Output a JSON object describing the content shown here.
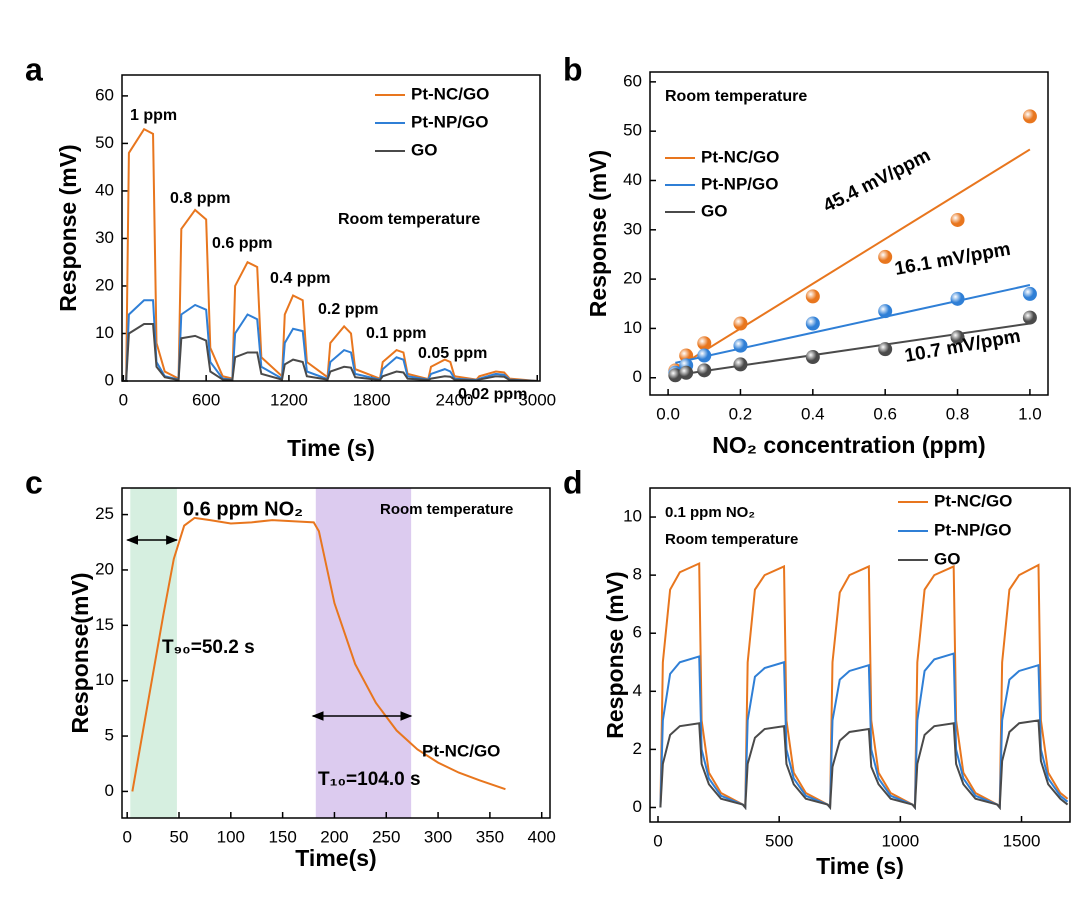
{
  "chart_data": [
    {
      "type": "line",
      "panel_label": "a",
      "y_label": "Response (mV)",
      "x_label": "Time (s)",
      "xlim": [
        -10,
        3020
      ],
      "ylim": [
        0,
        64.4
      ],
      "xticks": [
        0,
        600,
        1200,
        1800,
        2400,
        3000
      ],
      "yticks": [
        0,
        10,
        20,
        30,
        40,
        50,
        60
      ],
      "legend": true,
      "annotations": [
        "1 ppm",
        "0.8 ppm",
        "0.6 ppm",
        "0.4 ppm",
        "0.2 ppm",
        "0.1 ppm",
        "0.05 ppm",
        "0.02 ppm",
        "Room temperature"
      ],
      "x": [
        0,
        20,
        40,
        150,
        215,
        240,
        300,
        400,
        420,
        520,
        600,
        630,
        720,
        790,
        810,
        900,
        970,
        1000,
        1150,
        1170,
        1230,
        1300,
        1330,
        1480,
        1500,
        1600,
        1650,
        1680,
        1860,
        1880,
        1980,
        2030,
        2060,
        2210,
        2230,
        2330,
        2370,
        2400,
        2560,
        2580,
        2700,
        2760,
        2800,
        3000
      ],
      "series": [
        {
          "name": "Pt-NC/GO",
          "color": "#e8761e",
          "values": [
            0,
            0,
            48,
            53,
            52,
            8,
            2,
            0.5,
            32,
            36,
            34,
            7,
            1,
            0.5,
            20,
            25,
            24,
            5,
            1,
            14,
            18,
            17,
            4,
            0.8,
            8,
            11.5,
            10,
            2.5,
            0.5,
            4,
            6.5,
            6,
            1.5,
            0.4,
            3,
            4.5,
            4,
            1,
            0.3,
            1,
            2,
            1.8,
            0.5,
            0
          ]
        },
        {
          "name": "Pt-NP/GO",
          "color": "#2f7fd6",
          "values": [
            0,
            0,
            14,
            17,
            17,
            4,
            1,
            0.3,
            14,
            16,
            15,
            4,
            0.5,
            0.3,
            10,
            14,
            13,
            3,
            0.5,
            8,
            11,
            10.5,
            2,
            0.4,
            4,
            6.5,
            6,
            1.5,
            0.3,
            2.5,
            5,
            4.5,
            1,
            0.3,
            1.5,
            2.5,
            2,
            0.5,
            0.2,
            0.5,
            1.5,
            1.3,
            0.3,
            0
          ]
        },
        {
          "name": "GO",
          "color": "#4a4a4a",
          "values": [
            0,
            0,
            10,
            12,
            12,
            3,
            0.8,
            0.2,
            9,
            9.5,
            8.5,
            2,
            0.3,
            0.2,
            5,
            6,
            6,
            1.5,
            0.3,
            3.5,
            4.5,
            4,
            1,
            0.3,
            2,
            3,
            2.8,
            0.8,
            0.2,
            1,
            2,
            1.8,
            0.5,
            0.2,
            0.5,
            1,
            0.9,
            0.3,
            0.1,
            0.3,
            1,
            0.9,
            0.2,
            0
          ]
        }
      ]
    },
    {
      "type": "scatter",
      "panel_label": "b",
      "y_label": "Response (mV)",
      "x_label": "NO₂ concentration (ppm)",
      "xlim": [
        -0.05,
        1.05
      ],
      "ylim": [
        -3.5,
        62
      ],
      "xticks": [
        {
          "value": 0,
          "label": "0.0"
        },
        0.2,
        0.4,
        0.6,
        0.8,
        {
          "value": 1,
          "label": "1.0"
        }
      ],
      "yticks": [
        0,
        10,
        20,
        30,
        40,
        50,
        60
      ],
      "legend": true,
      "annotations": [
        "Room temperature"
      ],
      "fit_x": [
        0.02,
        1.0
      ],
      "x": [
        0.02,
        0.05,
        0.1,
        0.2,
        0.4,
        0.6,
        0.8,
        1.0
      ],
      "series": [
        {
          "name": "Pt-NC/GO",
          "color": "#e8761e",
          "values": [
            1.5,
            4.5,
            7,
            11,
            16.5,
            24.5,
            32,
            53
          ],
          "fit": {
            "slope": 45.4,
            "intercept": 0.9,
            "label": "45.4 mV/ppm"
          }
        },
        {
          "name": "Pt-NP/GO",
          "color": "#2f7fd6",
          "values": [
            1,
            2.5,
            4.5,
            6.5,
            11,
            13.5,
            16,
            17
          ],
          "fit": {
            "slope": 16.1,
            "intercept": 2.7,
            "label": "16.1 mV/ppm"
          }
        },
        {
          "name": "GO",
          "color": "#4a4a4a",
          "values": [
            0.5,
            1,
            1.5,
            2.7,
            4.2,
            5.8,
            8.2,
            12.2
          ],
          "fit": {
            "slope": 10.7,
            "intercept": 0.3,
            "label": "10.7 mV/ppm"
          }
        }
      ]
    },
    {
      "type": "line",
      "panel_label": "c",
      "y_label": "Response(mV)",
      "x_label": "Time(s)",
      "xlim": [
        -5,
        408
      ],
      "ylim": [
        -2.4,
        27.4
      ],
      "xticks": [
        0,
        50,
        100,
        150,
        200,
        250,
        300,
        350,
        400
      ],
      "yticks": [
        0,
        5,
        10,
        15,
        20,
        25
      ],
      "legend": false,
      "annotations": [
        "0.6 ppm NO₂",
        "Room temperature",
        "T₉₀=50.2 s",
        "T₁₀=104.0 s"
      ],
      "shaded_regions": [
        {
          "xlim": [
            3,
            48
          ],
          "color": "#d6efe0"
        },
        {
          "xlim": [
            182,
            274
          ],
          "color": "#dccbef"
        }
      ],
      "x": [
        5,
        20,
        35,
        45,
        55,
        65,
        80,
        100,
        120,
        140,
        160,
        180,
        185,
        200,
        220,
        240,
        260,
        280,
        300,
        320,
        340,
        365
      ],
      "series": [
        {
          "name": "Pt-NC/GO",
          "color": "#e8761e",
          "values": [
            0,
            8,
            16,
            21,
            24,
            24.7,
            24.5,
            24.2,
            24.3,
            24.5,
            24.4,
            24.3,
            23.5,
            17,
            11.5,
            8,
            5.5,
            3.8,
            2.6,
            1.7,
            1,
            0.2
          ]
        }
      ]
    },
    {
      "type": "line",
      "panel_label": "d",
      "y_label": "Response (mV)",
      "x_label": "Time (s)",
      "xlim": [
        -33,
        1700
      ],
      "ylim": [
        -0.5,
        11
      ],
      "xticks": [
        0,
        500,
        1000,
        1500
      ],
      "yticks": [
        0,
        2,
        4,
        6,
        8,
        10
      ],
      "legend": true,
      "annotations": [
        "0.1 ppm NO₂",
        "Room temperature"
      ],
      "x": [
        10,
        20,
        50,
        90,
        170,
        180,
        210,
        260,
        350,
        360,
        370,
        400,
        440,
        520,
        530,
        560,
        610,
        700,
        710,
        720,
        750,
        790,
        870,
        880,
        910,
        960,
        1050,
        1060,
        1070,
        1100,
        1140,
        1220,
        1230,
        1260,
        1310,
        1400,
        1410,
        1420,
        1450,
        1490,
        1570,
        1580,
        1610,
        1660,
        1690
      ],
      "series": [
        {
          "name": "Pt-NC/GO",
          "color": "#e8761e",
          "values": [
            0,
            5,
            7.5,
            8.1,
            8.4,
            3,
            1.2,
            0.5,
            0.1,
            0,
            5,
            7.5,
            8,
            8.3,
            3,
            1.2,
            0.5,
            0.1,
            0,
            5,
            7.4,
            8,
            8.3,
            3,
            1.2,
            0.5,
            0.1,
            0,
            5,
            7.5,
            8,
            8.3,
            3,
            1.2,
            0.5,
            0.1,
            0,
            5,
            7.5,
            8,
            8.35,
            3,
            1.2,
            0.5,
            0.3
          ]
        },
        {
          "name": "Pt-NP/GO",
          "color": "#2f7fd6",
          "values": [
            0,
            3,
            4.6,
            5,
            5.2,
            2,
            1,
            0.4,
            0.1,
            0,
            3,
            4.5,
            4.8,
            5,
            2,
            1,
            0.4,
            0.1,
            0,
            3,
            4.4,
            4.7,
            4.9,
            2,
            1,
            0.4,
            0.1,
            0,
            3,
            4.7,
            5.1,
            5.3,
            2,
            1,
            0.4,
            0.1,
            0,
            3,
            4.4,
            4.7,
            4.9,
            2,
            1,
            0.4,
            0.2
          ]
        },
        {
          "name": "GO",
          "color": "#4a4a4a",
          "values": [
            0,
            1.5,
            2.5,
            2.8,
            2.9,
            1.5,
            0.8,
            0.3,
            0.1,
            0,
            1.5,
            2.4,
            2.7,
            2.8,
            1.5,
            0.8,
            0.3,
            0.1,
            0,
            1.4,
            2.3,
            2.6,
            2.7,
            1.4,
            0.8,
            0.3,
            0.1,
            0,
            1.5,
            2.5,
            2.8,
            2.9,
            1.5,
            0.8,
            0.3,
            0.1,
            0,
            1.6,
            2.6,
            2.9,
            3,
            1.6,
            0.8,
            0.3,
            0.1
          ]
        }
      ]
    }
  ]
}
